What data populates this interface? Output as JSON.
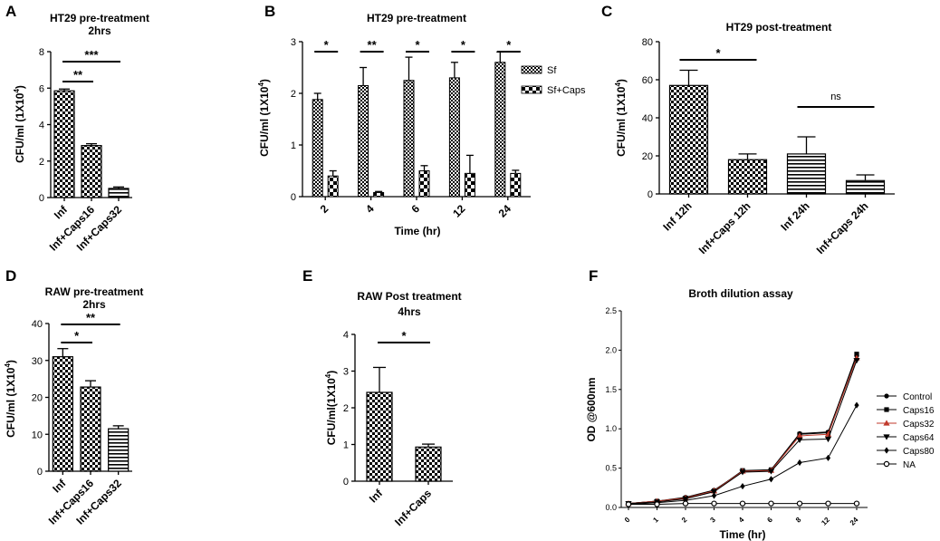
{
  "panel_letters": [
    "A",
    "B",
    "C",
    "D",
    "E",
    "F"
  ],
  "chart_data": [
    {
      "id": "A",
      "type": "bar",
      "title": "HT29 pre-treatment",
      "subtitle": "2hrs",
      "ylabel": "CFU/ml (1X10",
      "ylabel_exp": "4",
      "xlabel": "",
      "ylim": [
        0,
        8
      ],
      "yticks": [
        0,
        2,
        4,
        6,
        8
      ],
      "categories": [
        "Inf",
        "Inf+Caps16",
        "Inf+Caps32"
      ],
      "values": [
        5.85,
        2.85,
        0.5
      ],
      "errors": [
        0.1,
        0.1,
        0.08
      ],
      "patterns": [
        "checker",
        "checker",
        "hlines"
      ],
      "significance": [
        {
          "from": 0,
          "to": 1,
          "label": "**"
        },
        {
          "from": 0,
          "to": 2,
          "label": "***"
        }
      ]
    },
    {
      "id": "B",
      "type": "bar",
      "title": "HT29 pre-treatment",
      "ylabel": "CFU/ml (1X10",
      "ylabel_exp": "4",
      "xlabel": "Time (hr)",
      "ylim": [
        0,
        3
      ],
      "yticks": [
        0,
        1,
        2,
        3
      ],
      "categories": [
        "2",
        "4",
        "6",
        "12",
        "24"
      ],
      "series": [
        {
          "name": "Sf",
          "values": [
            1.88,
            2.15,
            2.25,
            2.3,
            2.6
          ],
          "errors": [
            0.12,
            0.35,
            0.45,
            0.3,
            0.2
          ]
        },
        {
          "name": "Sf+Caps",
          "values": [
            0.4,
            0.08,
            0.5,
            0.45,
            0.45
          ],
          "errors": [
            0.1,
            0.02,
            0.1,
            0.35,
            0.06
          ]
        }
      ],
      "significance": [
        "*",
        "**",
        "*",
        "*",
        "*"
      ],
      "legend": "right"
    },
    {
      "id": "C",
      "type": "bar",
      "title": "HT29 post-treatment",
      "ylabel": "CFU/ml (1X10",
      "ylabel_exp": "4",
      "xlabel": "",
      "ylim": [
        0,
        80
      ],
      "yticks": [
        0,
        20,
        40,
        60,
        80
      ],
      "categories": [
        "Inf 12h",
        "Inf+Caps 12h",
        "Inf 24h",
        "Inf+Caps 24h"
      ],
      "values": [
        57,
        18,
        21,
        7
      ],
      "errors": [
        8,
        3,
        9,
        3
      ],
      "patterns": [
        "checker",
        "checker",
        "hlines",
        "hlines"
      ],
      "significance": [
        {
          "from": 0,
          "to": 1,
          "label": "*"
        },
        {
          "from": 2,
          "to": 3,
          "label": "ns"
        }
      ]
    },
    {
      "id": "D",
      "type": "bar",
      "title": "RAW pre-treatment",
      "subtitle": "2hrs",
      "ylabel": "CFU/ml (1X10",
      "ylabel_exp": "4",
      "xlabel": "",
      "ylim": [
        0,
        40
      ],
      "yticks": [
        0,
        10,
        20,
        30,
        40
      ],
      "categories": [
        "Inf",
        "Inf+Caps16",
        "Inf+Caps32"
      ],
      "values": [
        31,
        22.8,
        11.5
      ],
      "errors": [
        2.2,
        1.7,
        0.8
      ],
      "patterns": [
        "checker",
        "checker",
        "hlines"
      ],
      "significance": [
        {
          "from": 0,
          "to": 1,
          "label": "*"
        },
        {
          "from": 0,
          "to": 2,
          "label": "**"
        }
      ]
    },
    {
      "id": "E",
      "type": "bar",
      "title": "RAW Post treatment",
      "subtitle": "4hrs",
      "ylabel": "CFU/ml(1X10",
      "ylabel_exp": "4",
      "xlabel": "",
      "ylim": [
        0,
        4
      ],
      "yticks": [
        0,
        1,
        2,
        3,
        4
      ],
      "categories": [
        "Inf",
        "Inf+Caps"
      ],
      "values": [
        2.42,
        0.93
      ],
      "errors": [
        0.68,
        0.08
      ],
      "patterns": [
        "checker",
        "checker"
      ],
      "significance": [
        {
          "from": 0,
          "to": 1,
          "label": "*"
        }
      ]
    },
    {
      "id": "F",
      "type": "line",
      "title": "Broth dilution assay",
      "ylabel": "OD @600nm",
      "xlabel": "Time (hr)",
      "ylim": [
        0,
        2.5
      ],
      "yticks": [
        "0.0",
        "0.5",
        "1.0",
        "1.5",
        "2.0",
        "2.5"
      ],
      "x": [
        "0",
        "1",
        "2",
        "3",
        "4",
        "6",
        "8",
        "12",
        "24"
      ],
      "series": [
        {
          "name": "Control",
          "marker": "circle-filled",
          "color": "#000000",
          "values": [
            0.05,
            0.08,
            0.13,
            0.22,
            0.46,
            0.48,
            0.94,
            0.96,
            1.93
          ]
        },
        {
          "name": "Caps16",
          "marker": "square",
          "color": "#000000",
          "values": [
            0.05,
            0.08,
            0.12,
            0.21,
            0.47,
            0.48,
            0.93,
            0.95,
            1.95
          ]
        },
        {
          "name": "Caps32",
          "marker": "triangle-up",
          "color": "#c0392b",
          "values": [
            0.05,
            0.08,
            0.12,
            0.21,
            0.46,
            0.47,
            0.91,
            0.93,
            1.9
          ]
        },
        {
          "name": "Caps64",
          "marker": "triangle-down",
          "color": "#000000",
          "values": [
            0.05,
            0.07,
            0.11,
            0.2,
            0.45,
            0.46,
            0.86,
            0.87,
            1.87
          ]
        },
        {
          "name": "Caps80",
          "marker": "diamond",
          "color": "#000000",
          "values": [
            0.04,
            0.06,
            0.09,
            0.15,
            0.27,
            0.36,
            0.57,
            0.63,
            1.3
          ]
        },
        {
          "name": "NA",
          "marker": "circle-open",
          "color": "#000000",
          "values": [
            0.04,
            0.04,
            0.05,
            0.05,
            0.05,
            0.05,
            0.05,
            0.05,
            0.05
          ]
        }
      ],
      "legend": "right"
    }
  ]
}
